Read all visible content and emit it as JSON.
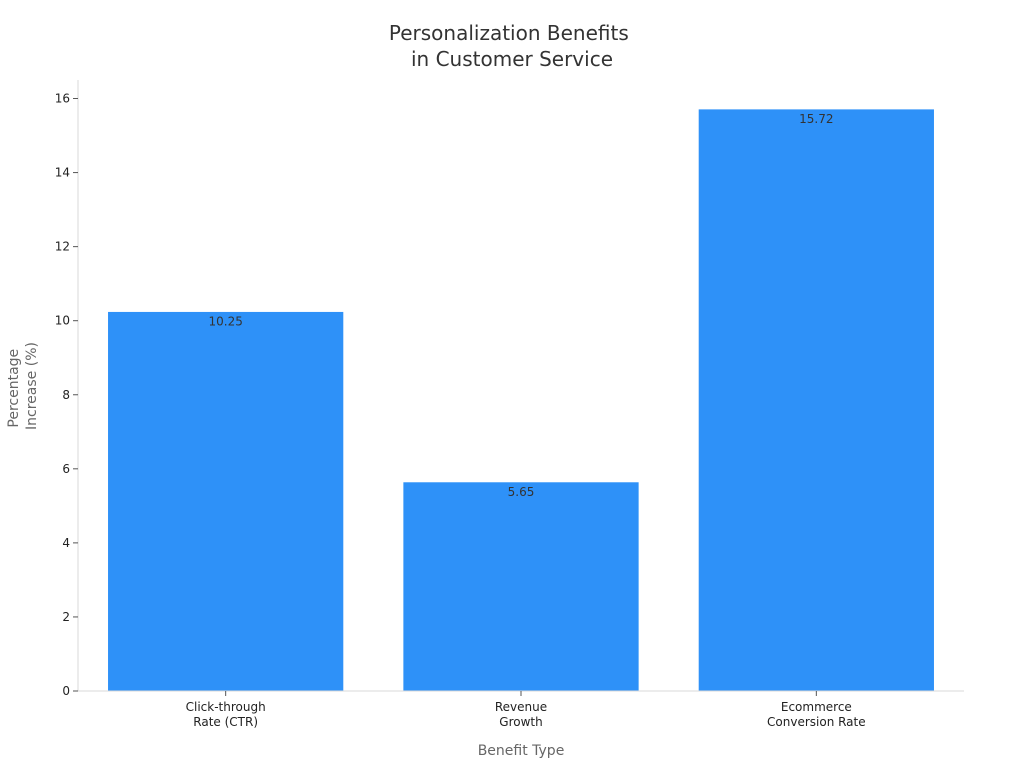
{
  "chart_data": {
    "type": "bar",
    "title": [
      "Personalization Benefits",
      "in Customer Service"
    ],
    "xlabel": "Benefit Type",
    "ylabel": [
      "Percentage",
      "Increase (%)"
    ],
    "categories": [
      [
        "Click-through",
        "Rate (CTR)"
      ],
      [
        "Revenue",
        "Growth"
      ],
      [
        "Ecommerce",
        "Conversion Rate"
      ]
    ],
    "values": [
      10.25,
      5.65,
      15.72
    ],
    "data_labels": [
      "10.25",
      "5.65",
      "15.72"
    ],
    "ylim": [
      0,
      16.5
    ],
    "yticks": [
      0,
      2,
      4,
      6,
      8,
      10,
      12,
      14,
      16
    ],
    "ytick_labels": [
      "0",
      "2",
      "4",
      "6",
      "8",
      "10",
      "12",
      "14",
      "16"
    ],
    "grid": false,
    "bar_color": "#2e91f8",
    "axis_color": "#d9d9d9"
  }
}
